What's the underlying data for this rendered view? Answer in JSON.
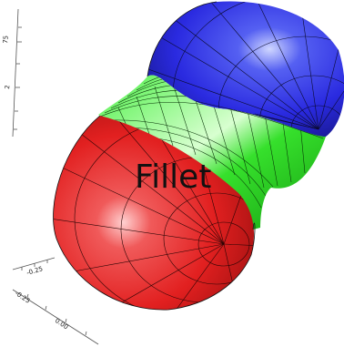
{
  "label": "Fillet",
  "axes": {
    "z_ticks": [
      "75",
      "2"
    ],
    "x_ticks": [
      "-0.25"
    ],
    "y_ticks": [
      "-0.25",
      "0.00"
    ]
  },
  "colors": {
    "sphere_bottom": "#e8262a",
    "fillet": "#26e020",
    "sphere_top": "#2a2ae6",
    "mesh": "#111111"
  }
}
